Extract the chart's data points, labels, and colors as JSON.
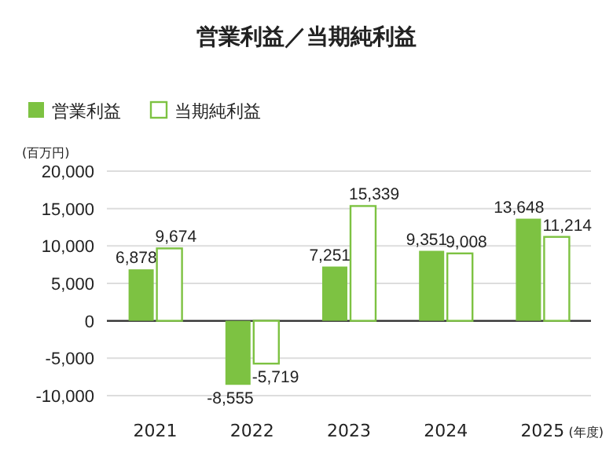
{
  "chart_data": {
    "type": "bar",
    "title": "営業利益／当期純利益",
    "ylabel": "(百万円)",
    "categories": [
      "2021",
      "2022",
      "2023",
      "2024",
      "2025"
    ],
    "series": [
      {
        "name": "営業利益",
        "color": "#7dc242",
        "values": [
          6878,
          -8555,
          7251,
          9351,
          13648
        ],
        "value_labels": [
          "6,878",
          "-8,555",
          "7,251",
          "9,351",
          "13,648"
        ]
      },
      {
        "name": "当期純利益",
        "color": "#ffffff",
        "values": [
          9674,
          -5719,
          15339,
          9008,
          11214
        ],
        "value_labels": [
          "9,674",
          "-5,719",
          "15,339",
          "9,008",
          "11,214"
        ]
      }
    ],
    "ylim": [
      -10000,
      20000
    ],
    "yticks": [
      {
        "value": -10000,
        "label": "-10,000"
      },
      {
        "value": -5000,
        "label": "-5,000"
      },
      0,
      {
        "value": 5000,
        "label": "5,000"
      },
      {
        "value": 10000,
        "label": "10,000"
      },
      {
        "value": 15000,
        "label": "15,000"
      },
      {
        "value": 20000,
        "label": "20,000"
      }
    ],
    "grid": "y",
    "legend": "top left",
    "annotations": [
      "(年度)"
    ]
  }
}
